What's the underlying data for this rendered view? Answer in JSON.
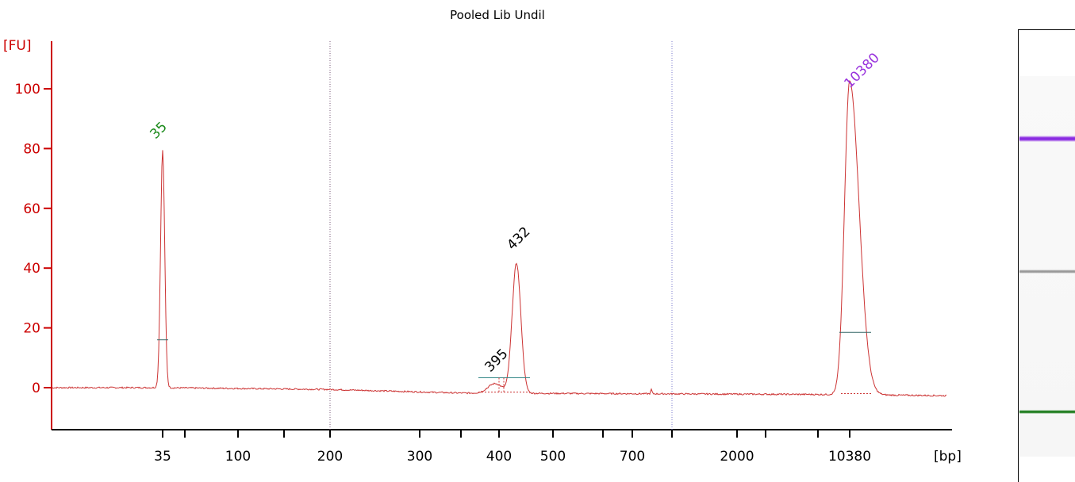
{
  "chart_data": {
    "type": "line",
    "title": "Pooled Lib Undil",
    "ylabel": "[FU]",
    "xlabel": "[bp]",
    "ylim": [
      -13,
      115
    ],
    "y_ticks": [
      0,
      20,
      40,
      60,
      80,
      100
    ],
    "x_ticks": [
      "35",
      "100",
      "200",
      "300",
      "400",
      "500",
      "700",
      "2000",
      "10380"
    ],
    "x_scale": "ladder (electropherogram migration)",
    "grid": false,
    "series": [
      {
        "color": "#cc3333",
        "x": [
          "35",
          "100",
          "200",
          "300",
          "395",
          "432",
          "500",
          "700",
          "2000",
          "10380"
        ],
        "y": [
          79.5,
          -0.2,
          -0.6,
          -1.6,
          3.5,
          43.5,
          0.5,
          -1.8,
          -2.1,
          104
        ]
      }
    ],
    "peaks": [
      {
        "label": "35",
        "bp": 35,
        "fu": 79.5,
        "color": "#1a8a1a",
        "role": "lower marker"
      },
      {
        "label": "395",
        "bp": 395,
        "fu": 3.5,
        "color": "#000000",
        "role": "sample"
      },
      {
        "label": "432",
        "bp": 432,
        "fu": 43.5,
        "color": "#000000",
        "role": "sample"
      },
      {
        "label": "10380",
        "bp": 10380,
        "fu": 104,
        "color": "#9933dd",
        "role": "upper marker"
      }
    ],
    "axis_color": "#cc0000",
    "trace_color": "#cc3333"
  },
  "gel": {
    "bands": [
      {
        "role": "upper marker",
        "color": "#8a2be2"
      },
      {
        "role": "sample",
        "color": "#999999"
      },
      {
        "role": "lower marker",
        "color": "#1a7a1a"
      }
    ]
  }
}
